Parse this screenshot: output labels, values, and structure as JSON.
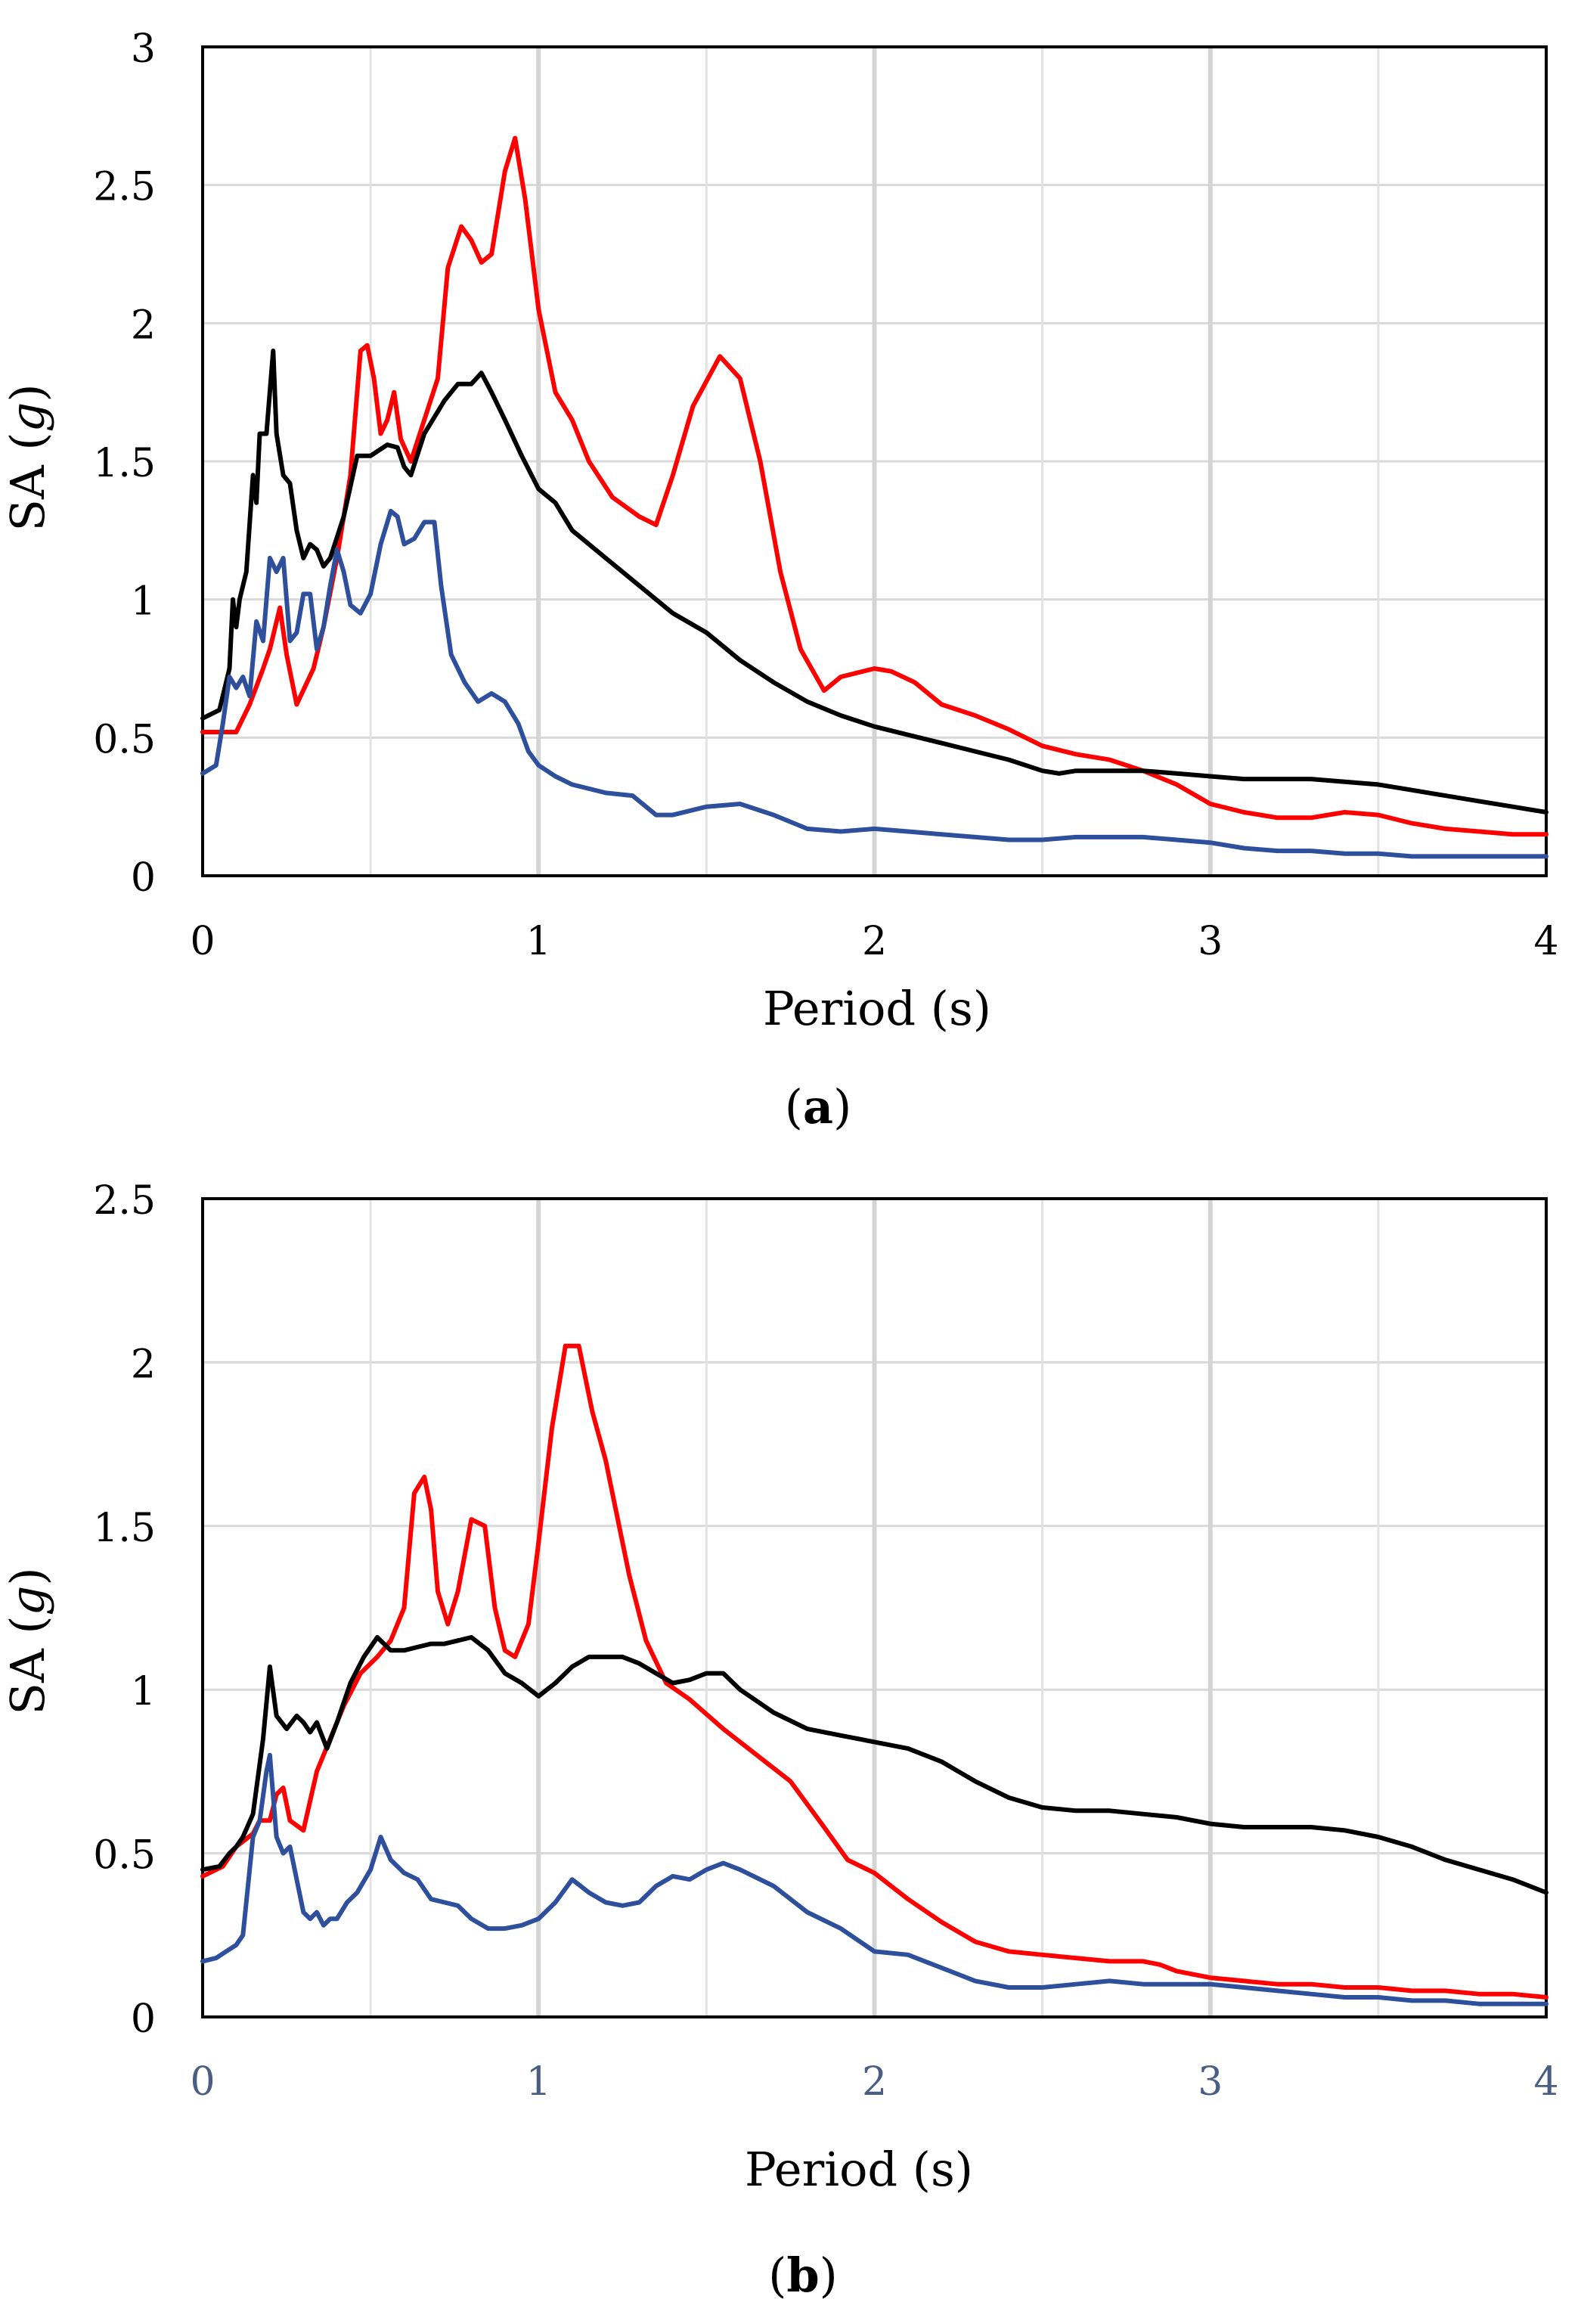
{
  "chart_data": [
    {
      "type": "line",
      "panel_label": "a",
      "xlabel": "Period (s)",
      "ylabel": "SA (g)",
      "ylabel_main": "SA (",
      "ylabel_italic": "g",
      "ylabel_close": ")",
      "xlim": [
        0,
        4
      ],
      "ylim": [
        0,
        3
      ],
      "xticks": [
        0,
        1,
        2,
        3,
        4
      ],
      "yticks": [
        0,
        0.5,
        1,
        1.5,
        2,
        2.5,
        3
      ],
      "xtick_labels": [
        "0",
        "1",
        "2",
        "3",
        "4"
      ],
      "ytick_labels": [
        "0",
        "0.5",
        "1",
        "1.5",
        "2",
        "2.5",
        "3"
      ],
      "xminor": [
        0.5,
        1.5,
        2.5,
        3.5
      ],
      "ygrid": [
        0.5,
        1,
        1.5,
        2,
        2.5
      ],
      "grid": true,
      "series": [
        {
          "name": "red",
          "color": "#ff0000",
          "x": [
            0,
            0.1,
            0.14,
            0.18,
            0.2,
            0.23,
            0.25,
            0.28,
            0.33,
            0.36,
            0.4,
            0.44,
            0.47,
            0.49,
            0.51,
            0.53,
            0.55,
            0.57,
            0.59,
            0.62,
            0.66,
            0.7,
            0.73,
            0.77,
            0.8,
            0.83,
            0.86,
            0.9,
            0.93,
            0.96,
            1.0,
            1.05,
            1.1,
            1.15,
            1.22,
            1.3,
            1.35,
            1.4,
            1.46,
            1.54,
            1.6,
            1.66,
            1.72,
            1.78,
            1.85,
            1.9,
            2.0,
            2.05,
            2.12,
            2.2,
            2.3,
            2.4,
            2.5,
            2.6,
            2.7,
            2.8,
            2.9,
            3.0,
            3.1,
            3.2,
            3.3,
            3.4,
            3.5,
            3.6,
            3.7,
            3.8,
            3.9,
            4.0
          ],
          "values": [
            0.52,
            0.52,
            0.62,
            0.75,
            0.82,
            0.97,
            0.8,
            0.62,
            0.75,
            0.9,
            1.15,
            1.45,
            1.9,
            1.92,
            1.8,
            1.6,
            1.65,
            1.75,
            1.58,
            1.5,
            1.65,
            1.8,
            2.2,
            2.35,
            2.3,
            2.22,
            2.25,
            2.55,
            2.67,
            2.45,
            2.05,
            1.75,
            1.65,
            1.5,
            1.37,
            1.3,
            1.27,
            1.45,
            1.7,
            1.88,
            1.8,
            1.5,
            1.1,
            0.82,
            0.67,
            0.72,
            0.75,
            0.74,
            0.7,
            0.62,
            0.58,
            0.53,
            0.47,
            0.44,
            0.42,
            0.38,
            0.33,
            0.26,
            0.23,
            0.21,
            0.21,
            0.23,
            0.22,
            0.19,
            0.17,
            0.16,
            0.15,
            0.15
          ]
        },
        {
          "name": "black",
          "color": "#000000",
          "x": [
            0,
            0.05,
            0.08,
            0.09,
            0.1,
            0.11,
            0.13,
            0.15,
            0.16,
            0.17,
            0.19,
            0.21,
            0.22,
            0.24,
            0.26,
            0.28,
            0.3,
            0.32,
            0.34,
            0.36,
            0.38,
            0.42,
            0.46,
            0.5,
            0.55,
            0.58,
            0.6,
            0.62,
            0.66,
            0.72,
            0.76,
            0.8,
            0.83,
            0.86,
            0.9,
            0.95,
            1.0,
            1.05,
            1.1,
            1.2,
            1.3,
            1.4,
            1.5,
            1.6,
            1.7,
            1.8,
            1.9,
            2.0,
            2.1,
            2.2,
            2.3,
            2.4,
            2.5,
            2.55,
            2.6,
            2.7,
            2.8,
            2.9,
            3.0,
            3.1,
            3.2,
            3.3,
            3.4,
            3.5,
            3.6,
            3.7,
            3.8,
            3.9,
            4.0
          ],
          "values": [
            0.57,
            0.6,
            0.75,
            1.0,
            0.9,
            1.0,
            1.1,
            1.45,
            1.35,
            1.6,
            1.6,
            1.9,
            1.6,
            1.45,
            1.42,
            1.25,
            1.15,
            1.2,
            1.18,
            1.12,
            1.15,
            1.3,
            1.52,
            1.52,
            1.56,
            1.55,
            1.48,
            1.45,
            1.6,
            1.72,
            1.78,
            1.78,
            1.82,
            1.75,
            1.65,
            1.52,
            1.4,
            1.35,
            1.25,
            1.15,
            1.05,
            0.95,
            0.88,
            0.78,
            0.7,
            0.63,
            0.58,
            0.54,
            0.51,
            0.48,
            0.45,
            0.42,
            0.38,
            0.37,
            0.38,
            0.38,
            0.38,
            0.37,
            0.36,
            0.35,
            0.35,
            0.35,
            0.34,
            0.33,
            0.31,
            0.29,
            0.27,
            0.25,
            0.23
          ]
        },
        {
          "name": "blue",
          "color": "#2e4f9c",
          "x": [
            0,
            0.04,
            0.06,
            0.08,
            0.1,
            0.12,
            0.14,
            0.16,
            0.18,
            0.2,
            0.22,
            0.24,
            0.26,
            0.28,
            0.3,
            0.32,
            0.34,
            0.36,
            0.38,
            0.4,
            0.42,
            0.44,
            0.47,
            0.5,
            0.53,
            0.56,
            0.58,
            0.6,
            0.63,
            0.66,
            0.69,
            0.71,
            0.74,
            0.78,
            0.82,
            0.86,
            0.9,
            0.94,
            0.97,
            1.0,
            1.05,
            1.1,
            1.2,
            1.28,
            1.35,
            1.4,
            1.5,
            1.6,
            1.7,
            1.8,
            1.9,
            2.0,
            2.1,
            2.2,
            2.3,
            2.4,
            2.5,
            2.6,
            2.7,
            2.8,
            2.9,
            3.0,
            3.1,
            3.2,
            3.3,
            3.4,
            3.5,
            3.6,
            3.7,
            3.8,
            3.9,
            4.0
          ],
          "values": [
            0.37,
            0.4,
            0.55,
            0.72,
            0.68,
            0.72,
            0.65,
            0.92,
            0.85,
            1.15,
            1.1,
            1.15,
            0.85,
            0.88,
            1.02,
            1.02,
            0.82,
            0.9,
            1.05,
            1.18,
            1.1,
            0.98,
            0.95,
            1.02,
            1.2,
            1.32,
            1.3,
            1.2,
            1.22,
            1.28,
            1.28,
            1.05,
            0.8,
            0.7,
            0.63,
            0.66,
            0.63,
            0.55,
            0.45,
            0.4,
            0.36,
            0.33,
            0.3,
            0.29,
            0.22,
            0.22,
            0.25,
            0.26,
            0.22,
            0.17,
            0.16,
            0.17,
            0.16,
            0.15,
            0.14,
            0.13,
            0.13,
            0.14,
            0.14,
            0.14,
            0.13,
            0.12,
            0.1,
            0.09,
            0.09,
            0.08,
            0.08,
            0.07,
            0.07,
            0.07,
            0.07,
            0.07
          ]
        }
      ]
    },
    {
      "type": "line",
      "panel_label": "b",
      "xlabel": "Period (s)",
      "ylabel": "SA (g)",
      "ylabel_main": "SA (",
      "ylabel_italic": "g",
      "ylabel_close": ")",
      "xlim": [
        0,
        4
      ],
      "ylim": [
        0,
        2.5
      ],
      "xticks": [
        0,
        1,
        2,
        3,
        4
      ],
      "yticks": [
        0,
        0.5,
        1,
        1.5,
        2,
        2.5
      ],
      "xtick_labels": [
        "0",
        "1",
        "2",
        "3",
        "4"
      ],
      "ytick_labels": [
        "0",
        "0.5",
        "1",
        "1.5",
        "2",
        "2.5"
      ],
      "xminor": [
        0.5,
        1.5,
        2.5,
        3.5
      ],
      "ygrid": [
        0.5,
        1,
        1.5,
        2
      ],
      "grid": true,
      "series": [
        {
          "name": "red",
          "color": "#ff0000",
          "x": [
            0,
            0.06,
            0.1,
            0.15,
            0.17,
            0.2,
            0.22,
            0.24,
            0.26,
            0.3,
            0.34,
            0.38,
            0.42,
            0.47,
            0.52,
            0.56,
            0.6,
            0.63,
            0.66,
            0.68,
            0.7,
            0.73,
            0.76,
            0.8,
            0.84,
            0.87,
            0.9,
            0.93,
            0.97,
            1.0,
            1.04,
            1.08,
            1.12,
            1.16,
            1.2,
            1.23,
            1.27,
            1.32,
            1.38,
            1.45,
            1.55,
            1.65,
            1.75,
            1.85,
            1.92,
            2.0,
            2.1,
            2.2,
            2.3,
            2.4,
            2.5,
            2.6,
            2.7,
            2.8,
            2.85,
            2.9,
            3.0,
            3.1,
            3.2,
            3.3,
            3.4,
            3.5,
            3.6,
            3.7,
            3.8,
            3.9,
            4.0
          ],
          "values": [
            0.43,
            0.46,
            0.52,
            0.56,
            0.6,
            0.6,
            0.68,
            0.7,
            0.6,
            0.57,
            0.75,
            0.85,
            0.95,
            1.05,
            1.1,
            1.15,
            1.25,
            1.6,
            1.65,
            1.55,
            1.3,
            1.2,
            1.3,
            1.52,
            1.5,
            1.25,
            1.12,
            1.1,
            1.2,
            1.45,
            1.8,
            2.05,
            2.05,
            1.85,
            1.7,
            1.55,
            1.35,
            1.15,
            1.02,
            0.97,
            0.88,
            0.8,
            0.72,
            0.58,
            0.48,
            0.44,
            0.36,
            0.29,
            0.23,
            0.2,
            0.19,
            0.18,
            0.17,
            0.17,
            0.16,
            0.14,
            0.12,
            0.11,
            0.1,
            0.1,
            0.09,
            0.09,
            0.08,
            0.08,
            0.07,
            0.07,
            0.06
          ]
        },
        {
          "name": "black",
          "color": "#000000",
          "x": [
            0,
            0.05,
            0.08,
            0.1,
            0.12,
            0.15,
            0.18,
            0.2,
            0.22,
            0.25,
            0.28,
            0.3,
            0.32,
            0.34,
            0.37,
            0.4,
            0.44,
            0.48,
            0.52,
            0.56,
            0.6,
            0.64,
            0.68,
            0.72,
            0.76,
            0.8,
            0.85,
            0.9,
            0.95,
            1.0,
            1.05,
            1.1,
            1.15,
            1.2,
            1.25,
            1.3,
            1.35,
            1.4,
            1.45,
            1.5,
            1.55,
            1.6,
            1.7,
            1.8,
            1.9,
            2.0,
            2.1,
            2.2,
            2.3,
            2.4,
            2.5,
            2.6,
            2.7,
            2.8,
            2.9,
            3.0,
            3.1,
            3.2,
            3.3,
            3.4,
            3.5,
            3.6,
            3.7,
            3.8,
            3.9,
            4.0
          ],
          "values": [
            0.45,
            0.46,
            0.5,
            0.52,
            0.55,
            0.62,
            0.85,
            1.07,
            0.92,
            0.88,
            0.92,
            0.9,
            0.87,
            0.9,
            0.82,
            0.9,
            1.02,
            1.1,
            1.16,
            1.12,
            1.12,
            1.13,
            1.14,
            1.14,
            1.15,
            1.16,
            1.12,
            1.05,
            1.02,
            0.98,
            1.02,
            1.07,
            1.1,
            1.1,
            1.1,
            1.08,
            1.05,
            1.02,
            1.03,
            1.05,
            1.05,
            1.0,
            0.93,
            0.88,
            0.86,
            0.84,
            0.82,
            0.78,
            0.72,
            0.67,
            0.64,
            0.63,
            0.63,
            0.62,
            0.61,
            0.59,
            0.58,
            0.58,
            0.58,
            0.57,
            0.55,
            0.52,
            0.48,
            0.45,
            0.42,
            0.38
          ]
        },
        {
          "name": "blue",
          "color": "#2e4f9c",
          "x": [
            0,
            0.04,
            0.07,
            0.1,
            0.12,
            0.15,
            0.17,
            0.19,
            0.2,
            0.22,
            0.24,
            0.26,
            0.28,
            0.3,
            0.32,
            0.34,
            0.36,
            0.38,
            0.4,
            0.43,
            0.46,
            0.5,
            0.53,
            0.56,
            0.6,
            0.64,
            0.68,
            0.72,
            0.76,
            0.8,
            0.85,
            0.9,
            0.95,
            1.0,
            1.05,
            1.1,
            1.15,
            1.2,
            1.25,
            1.3,
            1.35,
            1.4,
            1.45,
            1.5,
            1.55,
            1.6,
            1.7,
            1.8,
            1.9,
            2.0,
            2.1,
            2.2,
            2.3,
            2.4,
            2.5,
            2.6,
            2.7,
            2.8,
            2.9,
            3.0,
            3.1,
            3.2,
            3.3,
            3.4,
            3.5,
            3.6,
            3.7,
            3.8,
            3.9,
            4.0
          ],
          "values": [
            0.17,
            0.18,
            0.2,
            0.22,
            0.25,
            0.55,
            0.6,
            0.75,
            0.8,
            0.55,
            0.5,
            0.52,
            0.42,
            0.32,
            0.3,
            0.32,
            0.28,
            0.3,
            0.3,
            0.35,
            0.38,
            0.45,
            0.55,
            0.48,
            0.44,
            0.42,
            0.36,
            0.35,
            0.34,
            0.3,
            0.27,
            0.27,
            0.28,
            0.3,
            0.35,
            0.42,
            0.38,
            0.35,
            0.34,
            0.35,
            0.4,
            0.43,
            0.42,
            0.45,
            0.47,
            0.45,
            0.4,
            0.32,
            0.27,
            0.2,
            0.19,
            0.15,
            0.11,
            0.09,
            0.09,
            0.1,
            0.11,
            0.1,
            0.1,
            0.1,
            0.09,
            0.08,
            0.07,
            0.06,
            0.06,
            0.05,
            0.05,
            0.04,
            0.04,
            0.04
          ]
        }
      ]
    }
  ]
}
